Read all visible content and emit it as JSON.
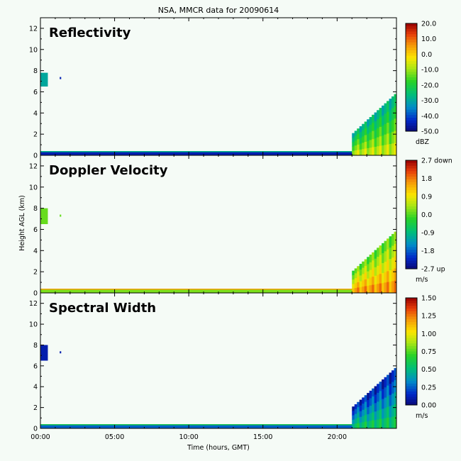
{
  "figure": {
    "title": "NSA, MMCR data for 20090614",
    "xlabel": "Time (hours, GMT)",
    "ylabel": "Height AGL (km)",
    "x_ticks": [
      "00:00",
      "05:00",
      "10:00",
      "15:00",
      "20:00"
    ],
    "y_ticks": [
      "0",
      "2",
      "4",
      "6",
      "8",
      "10",
      "12"
    ]
  },
  "panels": [
    {
      "title": "Reflectivity",
      "unit": "dBZ",
      "colorbar_labels": [
        "20.0",
        "10.0",
        "0.0",
        "-10.0",
        "-20.0",
        "-30.0",
        "-40.0",
        "-50.0"
      ]
    },
    {
      "title": "Doppler Velocity",
      "unit": "m/s",
      "colorbar_labels": [
        "2.7 down",
        "1.8",
        "0.9",
        "0.0",
        "-0.9",
        "-1.8",
        "-2.7 up"
      ]
    },
    {
      "title": "Spectral Width",
      "unit": "m/s",
      "colorbar_labels": [
        "1.50",
        "1.25",
        "1.00",
        "0.75",
        "0.50",
        "0.25",
        "0.00"
      ]
    }
  ],
  "chart_data": [
    {
      "type": "heatmap",
      "title": "Reflectivity",
      "xlabel": "Time (hours, GMT)",
      "ylabel": "Height AGL (km)",
      "xlim": [
        0,
        24
      ],
      "ylim": [
        0,
        13
      ],
      "colorbar": {
        "label": "dBZ",
        "range": [
          -50,
          20
        ]
      },
      "features": [
        {
          "x": [
            0.0,
            21.5
          ],
          "y": [
            0.0,
            0.4
          ],
          "value": -45
        },
        {
          "x": [
            0.0,
            0.5
          ],
          "y": [
            6.5,
            7.8
          ],
          "value": -30
        },
        {
          "x": [
            1.3,
            1.4
          ],
          "y": [
            7.2,
            7.4
          ],
          "value": -45
        },
        {
          "x": [
            21.0,
            24.0
          ],
          "y": [
            0.0,
            6.0
          ],
          "value": -15
        }
      ]
    },
    {
      "type": "heatmap",
      "title": "Doppler Velocity",
      "xlabel": "Time (hours, GMT)",
      "ylabel": "Height AGL (km)",
      "xlim": [
        0,
        24
      ],
      "ylim": [
        0,
        13
      ],
      "colorbar": {
        "label": "m/s",
        "range": [
          -2.7,
          2.7
        ]
      },
      "features": [
        {
          "x": [
            0.0,
            21.5
          ],
          "y": [
            0.0,
            0.4
          ],
          "value": 0.2
        },
        {
          "x": [
            0.0,
            0.5
          ],
          "y": [
            6.5,
            8.0
          ],
          "value": 0.1
        },
        {
          "x": [
            1.3,
            1.4
          ],
          "y": [
            7.2,
            7.4
          ],
          "value": 0.1
        },
        {
          "x": [
            21.0,
            24.0
          ],
          "y": [
            0.0,
            6.0
          ],
          "value": 1.0
        }
      ]
    },
    {
      "type": "heatmap",
      "title": "Spectral Width",
      "xlabel": "Time (hours, GMT)",
      "ylabel": "Height AGL (km)",
      "xlim": [
        0,
        24
      ],
      "ylim": [
        0,
        13
      ],
      "colorbar": {
        "label": "m/s",
        "range": [
          0.0,
          1.5
        ]
      },
      "features": [
        {
          "x": [
            0.0,
            21.5
          ],
          "y": [
            0.0,
            0.4
          ],
          "value": 0.25
        },
        {
          "x": [
            0.0,
            0.5
          ],
          "y": [
            6.5,
            8.0
          ],
          "value": 0.1
        },
        {
          "x": [
            1.3,
            1.4
          ],
          "y": [
            7.2,
            7.4
          ],
          "value": 0.1
        },
        {
          "x": [
            21.0,
            24.0
          ],
          "y": [
            0.0,
            6.0
          ],
          "value": 0.4
        }
      ]
    }
  ]
}
